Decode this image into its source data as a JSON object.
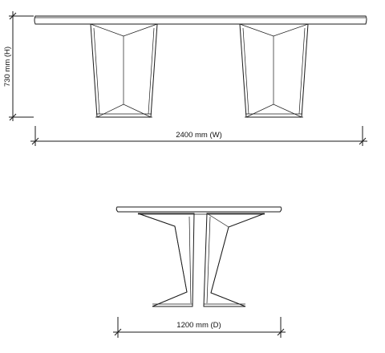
{
  "drawing": {
    "views": {
      "front": {
        "height_label": "730 mm (H)",
        "width_label": "2400 mm (W)"
      },
      "side": {
        "depth_label": "1200 mm (D)"
      }
    },
    "colors": {
      "line": "#1a1a1a",
      "background": "#ffffff"
    }
  }
}
